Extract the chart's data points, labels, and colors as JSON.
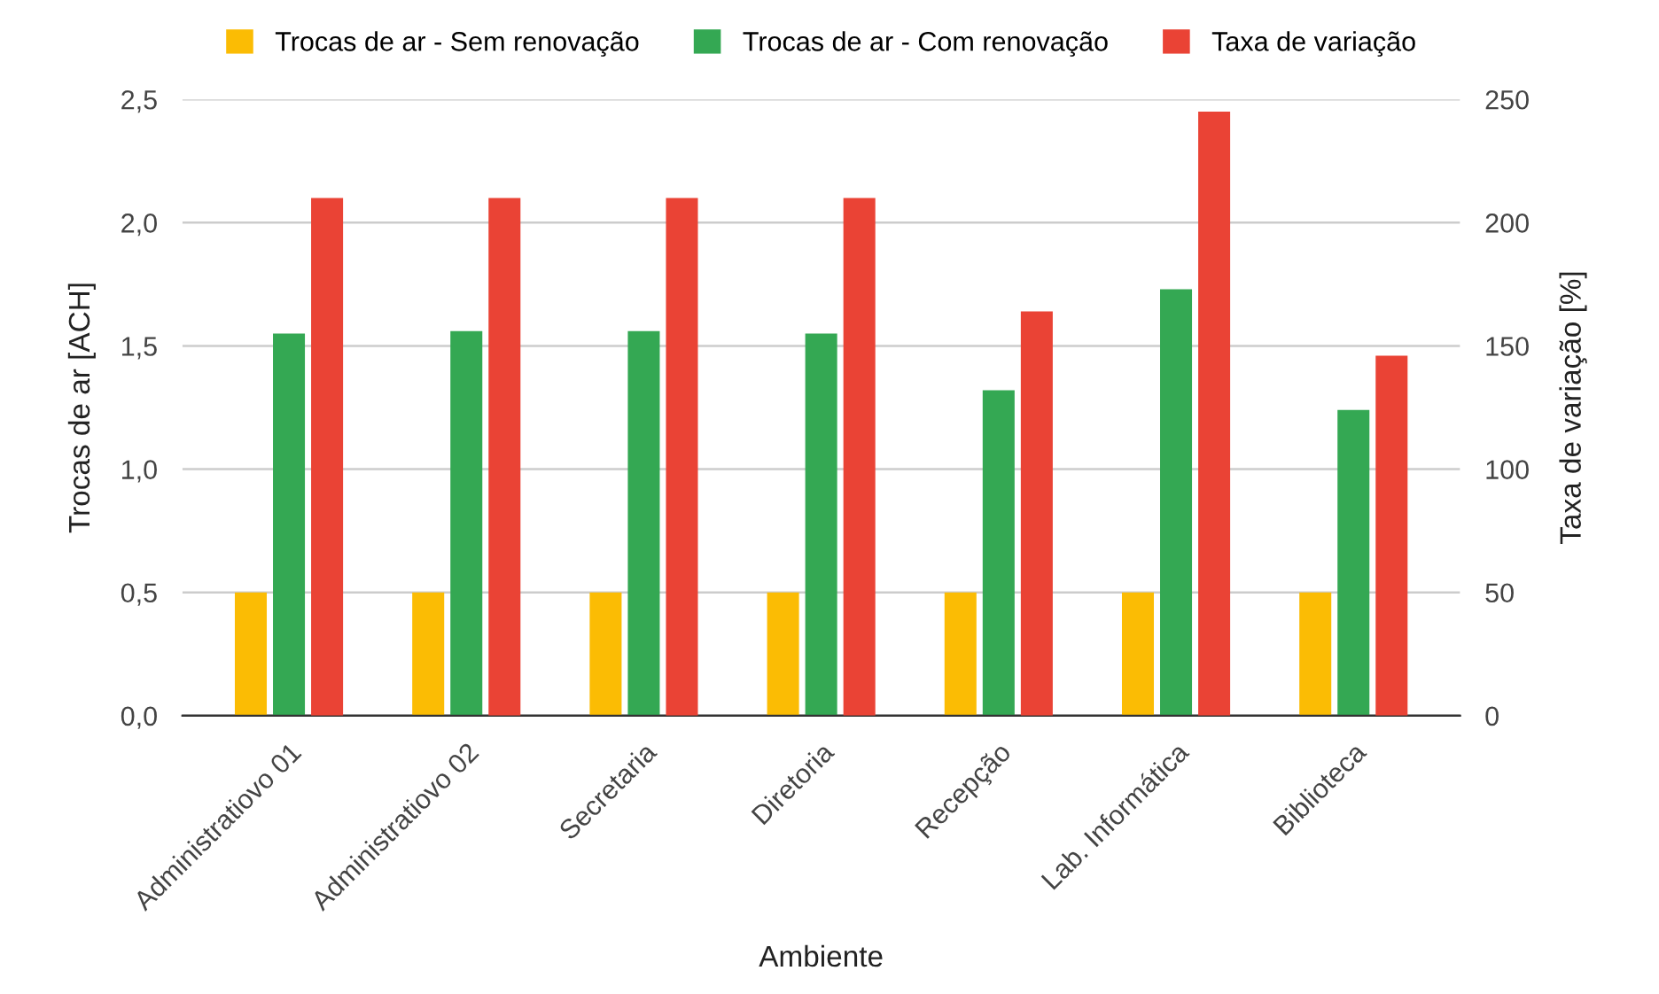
{
  "chart_data": {
    "type": "bar",
    "xlabel": "Ambiente",
    "ylabel": "Trocas de ar [ACH]",
    "y2label": "Taxa de variação [%]",
    "categories": [
      "Administratiovo 01",
      "Administratiovo 02",
      "Secretaria",
      "Diretoria",
      "Recepção",
      "Lab. Informática",
      "Biblioteca"
    ],
    "series": [
      {
        "name": "Trocas de ar - Sem renovação",
        "color": "#fbbc04",
        "values": [
          0.5,
          0.5,
          0.5,
          0.5,
          0.5,
          0.5,
          0.5
        ]
      },
      {
        "name": "Trocas de ar - Com renovação",
        "color": "#34a853",
        "values": [
          1.55,
          1.56,
          1.56,
          1.55,
          1.32,
          1.73,
          1.24
        ]
      },
      {
        "name": "Taxa de variação",
        "color": "#ea4335",
        "axis": "y2",
        "values": [
          210,
          210,
          210,
          210,
          164,
          245,
          146
        ]
      }
    ],
    "ylim": [
      0,
      2.5
    ],
    "yticks": [
      {
        "value": 0,
        "label": "0,0"
      },
      {
        "value": 0.5,
        "label": "0,5"
      },
      {
        "value": 1,
        "label": "1,0"
      },
      {
        "value": 1.5,
        "label": "1,5"
      },
      {
        "value": 2,
        "label": "2,0"
      },
      {
        "value": 2.5,
        "label": "2,5"
      }
    ],
    "y2lim": [
      0,
      250
    ],
    "y2ticks": [
      0,
      50,
      100,
      150,
      200,
      250
    ],
    "grid": "y",
    "legend": "top"
  }
}
